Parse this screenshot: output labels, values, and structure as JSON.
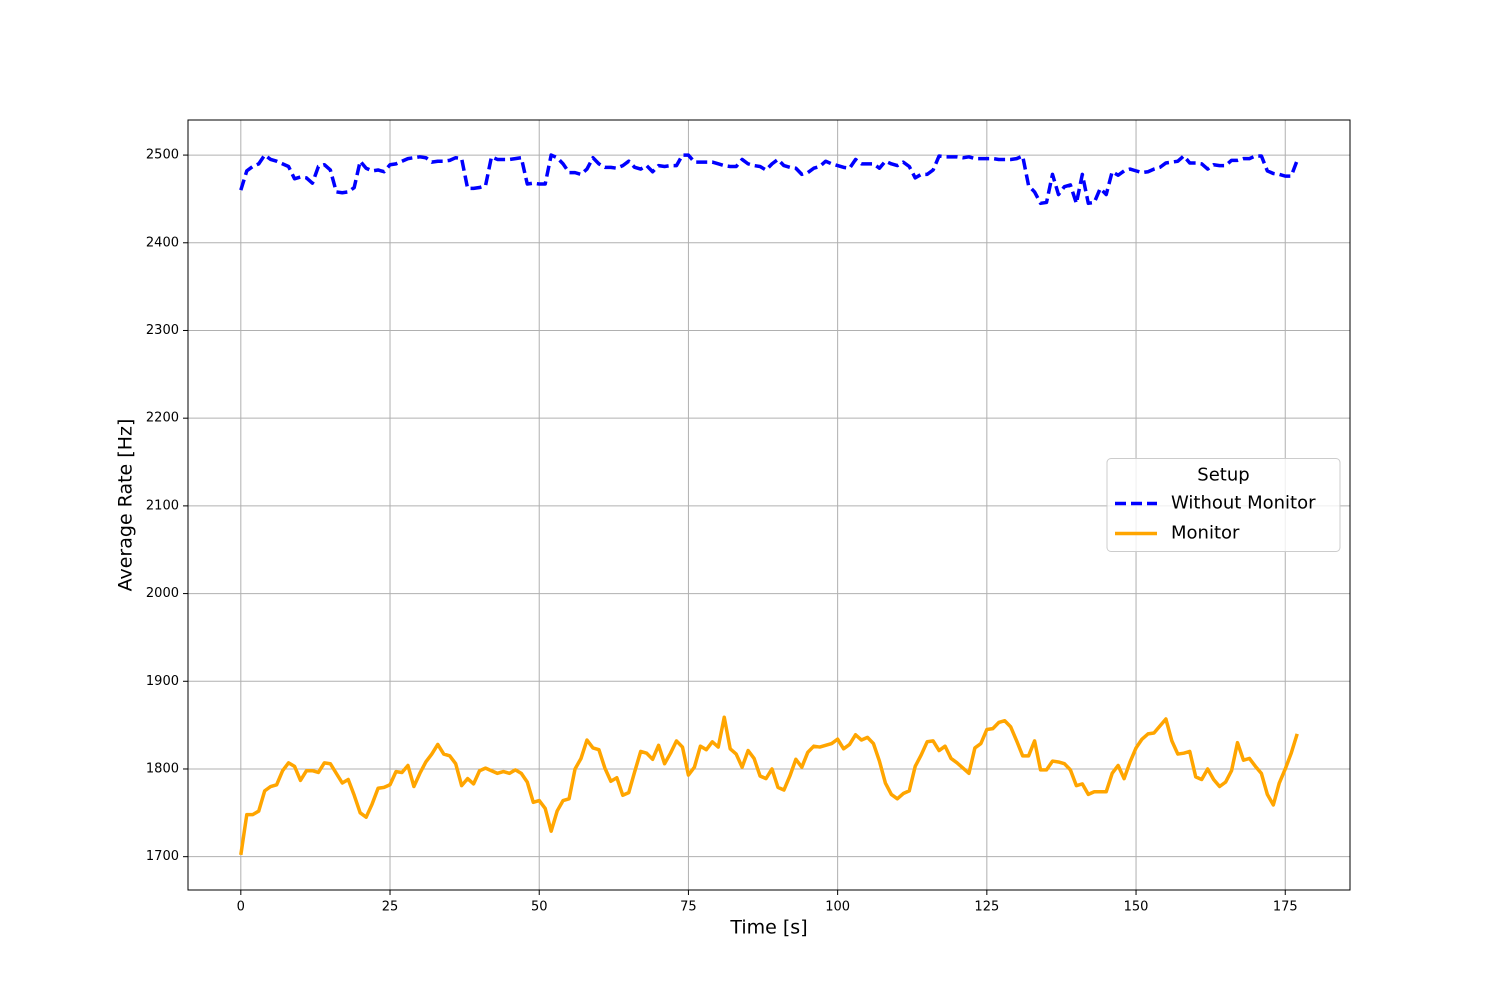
{
  "chart_data": {
    "type": "line",
    "x_label": "Time [s]",
    "y_label": "Average Rate [Hz]",
    "x": [
      0,
      1,
      2,
      3,
      4,
      5,
      6,
      7,
      8,
      9,
      10,
      11,
      12,
      13,
      14,
      15,
      16,
      17,
      18,
      19,
      20,
      21,
      22,
      23,
      24,
      25,
      26,
      27,
      28,
      29,
      30,
      31,
      32,
      33,
      34,
      35,
      36,
      37,
      38,
      39,
      40,
      41,
      42,
      43,
      44,
      45,
      46,
      47,
      48,
      49,
      50,
      51,
      52,
      53,
      54,
      55,
      56,
      57,
      58,
      59,
      60,
      61,
      62,
      63,
      64,
      65,
      66,
      67,
      68,
      69,
      70,
      71,
      72,
      73,
      74,
      75,
      76,
      77,
      78,
      79,
      80,
      81,
      82,
      83,
      84,
      85,
      86,
      87,
      88,
      89,
      90,
      91,
      92,
      93,
      94,
      95,
      96,
      97,
      98,
      99,
      100,
      101,
      102,
      103,
      104,
      105,
      106,
      107,
      108,
      109,
      110,
      111,
      112,
      113,
      114,
      115,
      116,
      117,
      118,
      119,
      120,
      121,
      122,
      123,
      124,
      125,
      126,
      127,
      128,
      129,
      130,
      131,
      132,
      133,
      134,
      135,
      136,
      137,
      138,
      139,
      140,
      141,
      142,
      143,
      144,
      145,
      146,
      147,
      148,
      149,
      150,
      151,
      152,
      153,
      154,
      155,
      156,
      157,
      158,
      159,
      160,
      161,
      162,
      163,
      164,
      165,
      166,
      167,
      168,
      169,
      170,
      171,
      172,
      173,
      174,
      175,
      176,
      177
    ],
    "series": [
      {
        "name": "Without Monitor",
        "color": "#0000ff",
        "dash": true,
        "values": [
          2460,
          2482,
          2487,
          2490,
          2500,
          2495,
          2493,
          2490,
          2487,
          2473,
          2475,
          2474,
          2468,
          2487,
          2489,
          2483,
          2458,
          2457,
          2458,
          2463,
          2493,
          2485,
          2482,
          2483,
          2481,
          2489,
          2490,
          2493,
          2496,
          2497,
          2498,
          2497,
          2492,
          2493,
          2493,
          2494,
          2497,
          2496,
          2462,
          2462,
          2463,
          2465,
          2498,
          2495,
          2495,
          2495,
          2496,
          2497,
          2467,
          2468,
          2467,
          2467,
          2500,
          2497,
          2490,
          2480,
          2480,
          2478,
          2484,
          2497,
          2490,
          2486,
          2486,
          2485,
          2488,
          2493,
          2486,
          2484,
          2488,
          2481,
          2488,
          2487,
          2488,
          2488,
          2500,
          2500,
          2492,
          2492,
          2492,
          2492,
          2490,
          2488,
          2487,
          2487,
          2495,
          2490,
          2488,
          2487,
          2483,
          2490,
          2495,
          2488,
          2486,
          2485,
          2478,
          2480,
          2485,
          2487,
          2493,
          2490,
          2488,
          2486,
          2485,
          2495,
          2490,
          2490,
          2490,
          2485,
          2493,
          2490,
          2488,
          2492,
          2487,
          2474,
          2478,
          2478,
          2483,
          2499,
          2498,
          2498,
          2498,
          2497,
          2498,
          2496,
          2496,
          2496,
          2496,
          2495,
          2495,
          2495,
          2496,
          2499,
          2465,
          2458,
          2445,
          2446,
          2478,
          2455,
          2464,
          2466,
          2445,
          2478,
          2445,
          2446,
          2462,
          2455,
          2481,
          2477,
          2482,
          2484,
          2482,
          2480,
          2481,
          2484,
          2486,
          2491,
          2492,
          2493,
          2499,
          2491,
          2491,
          2490,
          2484,
          2489,
          2488,
          2488,
          2494,
          2494,
          2496,
          2496,
          2499,
          2499,
          2482,
          2479,
          2478,
          2476,
          2476,
          2494
        ]
      },
      {
        "name": "Monitor",
        "color": "#ffa500",
        "dash": false,
        "values": [
          1702,
          1748,
          1748,
          1752,
          1775,
          1780,
          1782,
          1798,
          1807,
          1803,
          1787,
          1798,
          1798,
          1796,
          1807,
          1806,
          1795,
          1784,
          1788,
          1770,
          1750,
          1745,
          1760,
          1778,
          1779,
          1782,
          1797,
          1796,
          1804,
          1780,
          1795,
          1808,
          1817,
          1828,
          1817,
          1815,
          1806,
          1781,
          1789,
          1783,
          1798,
          1801,
          1798,
          1795,
          1797,
          1795,
          1799,
          1795,
          1785,
          1762,
          1764,
          1755,
          1729,
          1752,
          1764,
          1766,
          1800,
          1812,
          1833,
          1824,
          1822,
          1801,
          1786,
          1790,
          1770,
          1773,
          1797,
          1820,
          1818,
          1811,
          1827,
          1806,
          1818,
          1832,
          1825,
          1793,
          1802,
          1826,
          1822,
          1831,
          1825,
          1859,
          1823,
          1817,
          1802,
          1821,
          1812,
          1792,
          1789,
          1800,
          1779,
          1776,
          1792,
          1811,
          1802,
          1819,
          1826,
          1825,
          1827,
          1829,
          1834,
          1823,
          1828,
          1839,
          1833,
          1836,
          1829,
          1809,
          1784,
          1771,
          1766,
          1772,
          1775,
          1803,
          1816,
          1831,
          1832,
          1821,
          1826,
          1812,
          1807,
          1801,
          1795,
          1824,
          1829,
          1845,
          1846,
          1853,
          1855,
          1848,
          1832,
          1815,
          1815,
          1832,
          1799,
          1799,
          1809,
          1808,
          1806,
          1799,
          1781,
          1783,
          1771,
          1774,
          1774,
          1774,
          1795,
          1804,
          1789,
          1808,
          1824,
          1834,
          1840,
          1841,
          1849,
          1857,
          1832,
          1817,
          1818,
          1820,
          1791,
          1788,
          1800,
          1788,
          1780,
          1785,
          1798,
          1830,
          1810,
          1812,
          1803,
          1795,
          1771,
          1759,
          1784,
          1800,
          1818,
          1840
        ]
      }
    ],
    "xlim": [
      -8.85,
      185.85
    ],
    "ylim": [
      1662,
      2540
    ],
    "xticks": [
      0,
      25,
      50,
      75,
      100,
      125,
      150,
      175
    ],
    "yticks": [
      1700,
      1800,
      1900,
      2000,
      2100,
      2200,
      2300,
      2400,
      2500
    ],
    "grid": true,
    "legend_title": "Setup",
    "legend_loc": "center right"
  }
}
